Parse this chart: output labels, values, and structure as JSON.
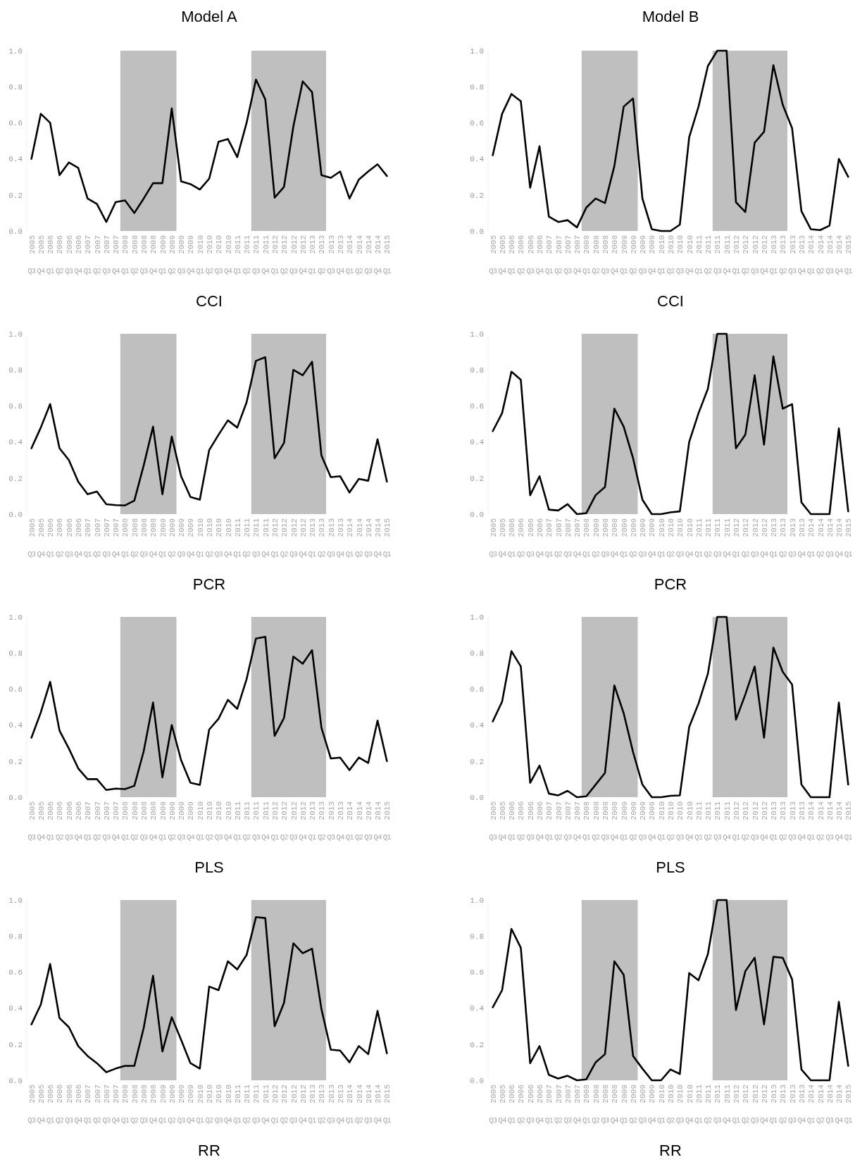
{
  "chart_data": [
    {
      "type": "line",
      "subtitle": "Model A",
      "title": "CCI",
      "categories": [
        "2005 Q3",
        "2005 Q4",
        "2006 Q1",
        "2006 Q2",
        "2006 Q3",
        "2006 Q4",
        "2007 Q1",
        "2007 Q2",
        "2007 Q3",
        "2007 Q4",
        "2008 Q1",
        "2008 Q2",
        "2008 Q3",
        "2008 Q4",
        "2009 Q1",
        "2009 Q2",
        "2009 Q3",
        "2009 Q4",
        "2010 Q1",
        "2010 Q2",
        "2010 Q3",
        "2010 Q4",
        "2011 Q1",
        "2011 Q2",
        "2011 Q3",
        "2011 Q4",
        "2012 Q1",
        "2012 Q2",
        "2012 Q3",
        "2012 Q4",
        "2013 Q1",
        "2013 Q2",
        "2013 Q3",
        "2013 Q4",
        "2014 Q1",
        "2014 Q2",
        "2014 Q3",
        "2014 Q4",
        "2015 Q1"
      ],
      "series": [
        {
          "color": "#000000",
          "values": [
            0.4,
            0.65,
            0.6,
            0.31,
            0.38,
            0.35,
            0.18,
            0.15,
            0.05,
            0.16,
            0.17,
            0.1,
            0.18,
            0.265,
            0.265,
            0.68,
            0.275,
            0.26,
            0.23,
            0.29,
            0.495,
            0.51,
            0.41,
            0.6,
            0.84,
            0.73,
            0.185,
            0.245,
            0.58,
            0.83,
            0.77,
            0.31,
            0.295,
            0.33,
            0.18,
            0.285,
            0.33,
            0.37,
            0.305
          ]
        }
      ],
      "ylim": [
        0,
        1
      ],
      "yticks": [
        {
          "value": 0,
          "label": "0.0"
        },
        {
          "value": 0.2,
          "label": "0.2"
        },
        {
          "value": 0.4,
          "label": "0.4"
        },
        {
          "value": 0.6,
          "label": "0.6"
        },
        {
          "value": 0.8,
          "label": "0.8"
        },
        {
          "value": 1,
          "label": "1.0"
        }
      ],
      "bands": [
        {
          "axis": "x",
          "from": "2008 Q1",
          "to": "2009 Q2",
          "color": "#bfbfbf"
        },
        {
          "axis": "x",
          "from": "2011 Q3",
          "to": "2013 Q2",
          "color": "#bfbfbf"
        }
      ]
    },
    {
      "type": "line",
      "subtitle": "Model B",
      "title": "CCI",
      "categories": [
        "2005 Q3",
        "2005 Q4",
        "2006 Q1",
        "2006 Q2",
        "2006 Q3",
        "2006 Q4",
        "2007 Q1",
        "2007 Q2",
        "2007 Q3",
        "2007 Q4",
        "2008 Q1",
        "2008 Q2",
        "2008 Q3",
        "2008 Q4",
        "2009 Q1",
        "2009 Q2",
        "2009 Q3",
        "2009 Q4",
        "2010 Q1",
        "2010 Q2",
        "2010 Q3",
        "2010 Q4",
        "2011 Q1",
        "2011 Q2",
        "2011 Q3",
        "2011 Q4",
        "2012 Q1",
        "2012 Q2",
        "2012 Q3",
        "2012 Q4",
        "2013 Q1",
        "2013 Q2",
        "2013 Q3",
        "2013 Q4",
        "2014 Q1",
        "2014 Q2",
        "2014 Q3",
        "2014 Q4",
        "2015 Q1"
      ],
      "series": [
        {
          "color": "#000000",
          "values": [
            0.42,
            0.65,
            0.76,
            0.72,
            0.24,
            0.47,
            0.08,
            0.05,
            0.06,
            0.02,
            0.13,
            0.18,
            0.155,
            0.36,
            0.69,
            0.735,
            0.18,
            0.01,
            0,
            0,
            0.035,
            0.52,
            0.69,
            0.915,
            1,
            1,
            0.16,
            0.105,
            0.49,
            0.55,
            0.92,
            0.7,
            0.57,
            0.11,
            0.01,
            0.005,
            0.03,
            0.4,
            0.3
          ]
        }
      ],
      "ylim": [
        0,
        1
      ],
      "yticks": [
        {
          "value": 0,
          "label": "0.0"
        },
        {
          "value": 0.2,
          "label": "0.2"
        },
        {
          "value": 0.4,
          "label": "0.4"
        },
        {
          "value": 0.6,
          "label": "0.6"
        },
        {
          "value": 0.8,
          "label": "0.8"
        },
        {
          "value": 1,
          "label": "1.0"
        }
      ],
      "bands": [
        {
          "axis": "x",
          "from": "2008 Q1",
          "to": "2009 Q2",
          "color": "#bfbfbf"
        },
        {
          "axis": "x",
          "from": "2011 Q3",
          "to": "2013 Q2",
          "color": "#bfbfbf"
        }
      ]
    },
    {
      "type": "line",
      "title": "PCR",
      "categories": [
        "2005 Q3",
        "2005 Q4",
        "2006 Q1",
        "2006 Q2",
        "2006 Q3",
        "2006 Q4",
        "2007 Q1",
        "2007 Q2",
        "2007 Q3",
        "2007 Q4",
        "2008 Q1",
        "2008 Q2",
        "2008 Q3",
        "2008 Q4",
        "2009 Q1",
        "2009 Q2",
        "2009 Q3",
        "2009 Q4",
        "2010 Q1",
        "2010 Q2",
        "2010 Q3",
        "2010 Q4",
        "2011 Q1",
        "2011 Q2",
        "2011 Q3",
        "2011 Q4",
        "2012 Q1",
        "2012 Q2",
        "2012 Q3",
        "2012 Q4",
        "2013 Q1",
        "2013 Q2",
        "2013 Q3",
        "2013 Q4",
        "2014 Q1",
        "2014 Q2",
        "2014 Q3",
        "2014 Q4",
        "2015 Q1"
      ],
      "series": [
        {
          "color": "#000000",
          "values": [
            0.365,
            0.48,
            0.61,
            0.365,
            0.3,
            0.18,
            0.11,
            0.125,
            0.055,
            0.05,
            0.048,
            0.075,
            0.27,
            0.485,
            0.11,
            0.43,
            0.21,
            0.095,
            0.08,
            0.355,
            0.44,
            0.52,
            0.48,
            0.62,
            0.85,
            0.87,
            0.31,
            0.395,
            0.8,
            0.77,
            0.845,
            0.325,
            0.205,
            0.21,
            0.12,
            0.195,
            0.185,
            0.415,
            0.18
          ]
        }
      ],
      "ylim": [
        0,
        1
      ],
      "yticks": [
        {
          "value": 0,
          "label": "0.0"
        },
        {
          "value": 0.2,
          "label": "0.2"
        },
        {
          "value": 0.4,
          "label": "0.4"
        },
        {
          "value": 0.6,
          "label": "0.6"
        },
        {
          "value": 0.8,
          "label": "0.8"
        },
        {
          "value": 1,
          "label": "1.0"
        }
      ],
      "bands": [
        {
          "axis": "x",
          "from": "2008 Q1",
          "to": "2009 Q2",
          "color": "#bfbfbf"
        },
        {
          "axis": "x",
          "from": "2011 Q3",
          "to": "2013 Q2",
          "color": "#bfbfbf"
        }
      ]
    },
    {
      "type": "line",
      "title": "PCR",
      "categories": [
        "2005 Q3",
        "2005 Q4",
        "2006 Q1",
        "2006 Q2",
        "2006 Q3",
        "2006 Q4",
        "2007 Q1",
        "2007 Q2",
        "2007 Q3",
        "2007 Q4",
        "2008 Q1",
        "2008 Q2",
        "2008 Q3",
        "2008 Q4",
        "2009 Q1",
        "2009 Q2",
        "2009 Q3",
        "2009 Q4",
        "2010 Q1",
        "2010 Q2",
        "2010 Q3",
        "2010 Q4",
        "2011 Q1",
        "2011 Q2",
        "2011 Q3",
        "2011 Q4",
        "2012 Q1",
        "2012 Q2",
        "2012 Q3",
        "2012 Q4",
        "2013 Q1",
        "2013 Q2",
        "2013 Q3",
        "2013 Q4",
        "2014 Q1",
        "2014 Q2",
        "2014 Q3",
        "2014 Q4",
        "2015 Q1"
      ],
      "series": [
        {
          "color": "#000000",
          "values": [
            0.46,
            0.56,
            0.79,
            0.745,
            0.105,
            0.21,
            0.025,
            0.02,
            0.055,
            0,
            0.005,
            0.105,
            0.15,
            0.585,
            0.485,
            0.31,
            0.08,
            0,
            0,
            0.01,
            0.015,
            0.4,
            0.56,
            0.695,
            1,
            1,
            0.365,
            0.44,
            0.77,
            0.385,
            0.875,
            0.585,
            0.61,
            0.065,
            0,
            0,
            0,
            0.475,
            0.015
          ]
        }
      ],
      "ylim": [
        0,
        1
      ],
      "yticks": [
        {
          "value": 0,
          "label": "0.0"
        },
        {
          "value": 0.2,
          "label": "0.2"
        },
        {
          "value": 0.4,
          "label": "0.4"
        },
        {
          "value": 0.6,
          "label": "0.6"
        },
        {
          "value": 0.8,
          "label": "0.8"
        },
        {
          "value": 1,
          "label": "1.0"
        }
      ],
      "bands": [
        {
          "axis": "x",
          "from": "2008 Q1",
          "to": "2009 Q2",
          "color": "#bfbfbf"
        },
        {
          "axis": "x",
          "from": "2011 Q3",
          "to": "2013 Q2",
          "color": "#bfbfbf"
        }
      ]
    },
    {
      "type": "line",
      "title": "PLS",
      "categories": [
        "2005 Q3",
        "2005 Q4",
        "2006 Q1",
        "2006 Q2",
        "2006 Q3",
        "2006 Q4",
        "2007 Q1",
        "2007 Q2",
        "2007 Q3",
        "2007 Q4",
        "2008 Q1",
        "2008 Q2",
        "2008 Q3",
        "2008 Q4",
        "2009 Q1",
        "2009 Q2",
        "2009 Q3",
        "2009 Q4",
        "2010 Q1",
        "2010 Q2",
        "2010 Q3",
        "2010 Q4",
        "2011 Q1",
        "2011 Q2",
        "2011 Q3",
        "2011 Q4",
        "2012 Q1",
        "2012 Q2",
        "2012 Q3",
        "2012 Q4",
        "2013 Q1",
        "2013 Q2",
        "2013 Q3",
        "2013 Q4",
        "2014 Q1",
        "2014 Q2",
        "2014 Q3",
        "2014 Q4",
        "2015 Q1"
      ],
      "series": [
        {
          "color": "#000000",
          "values": [
            0.33,
            0.47,
            0.64,
            0.37,
            0.27,
            0.16,
            0.1,
            0.1,
            0.04,
            0.048,
            0.045,
            0.063,
            0.255,
            0.525,
            0.11,
            0.4,
            0.205,
            0.08,
            0.068,
            0.375,
            0.435,
            0.54,
            0.49,
            0.655,
            0.88,
            0.89,
            0.34,
            0.44,
            0.78,
            0.74,
            0.815,
            0.385,
            0.215,
            0.22,
            0.15,
            0.22,
            0.19,
            0.425,
            0.2
          ]
        }
      ],
      "ylim": [
        0,
        1
      ],
      "yticks": [
        {
          "value": 0,
          "label": "0.0"
        },
        {
          "value": 0.2,
          "label": "0.2"
        },
        {
          "value": 0.4,
          "label": "0.4"
        },
        {
          "value": 0.6,
          "label": "0.6"
        },
        {
          "value": 0.8,
          "label": "0.8"
        },
        {
          "value": 1,
          "label": "1.0"
        }
      ],
      "bands": [
        {
          "axis": "x",
          "from": "2008 Q1",
          "to": "2009 Q2",
          "color": "#bfbfbf"
        },
        {
          "axis": "x",
          "from": "2011 Q3",
          "to": "2013 Q2",
          "color": "#bfbfbf"
        }
      ]
    },
    {
      "type": "line",
      "title": "PLS",
      "categories": [
        "2005 Q3",
        "2005 Q4",
        "2006 Q1",
        "2006 Q2",
        "2006 Q3",
        "2006 Q4",
        "2007 Q1",
        "2007 Q2",
        "2007 Q3",
        "2007 Q4",
        "2008 Q1",
        "2008 Q2",
        "2008 Q3",
        "2008 Q4",
        "2009 Q1",
        "2009 Q2",
        "2009 Q3",
        "2009 Q4",
        "2010 Q1",
        "2010 Q2",
        "2010 Q3",
        "2010 Q4",
        "2011 Q1",
        "2011 Q2",
        "2011 Q3",
        "2011 Q4",
        "2012 Q1",
        "2012 Q2",
        "2012 Q3",
        "2012 Q4",
        "2013 Q1",
        "2013 Q2",
        "2013 Q3",
        "2013 Q4",
        "2014 Q1",
        "2014 Q2",
        "2014 Q3",
        "2014 Q4",
        "2015 Q1"
      ],
      "series": [
        {
          "color": "#000000",
          "values": [
            0.42,
            0.53,
            0.81,
            0.725,
            0.08,
            0.175,
            0.02,
            0.01,
            0.035,
            0,
            0.005,
            0.07,
            0.135,
            0.62,
            0.465,
            0.25,
            0.07,
            0,
            0,
            0.008,
            0.01,
            0.39,
            0.52,
            0.685,
            1,
            1,
            0.43,
            0.57,
            0.725,
            0.33,
            0.83,
            0.695,
            0.625,
            0.07,
            0,
            0,
            0,
            0.525,
            0.07
          ]
        }
      ],
      "ylim": [
        0,
        1
      ],
      "yticks": [
        {
          "value": 0,
          "label": "0.0"
        },
        {
          "value": 0.2,
          "label": "0.2"
        },
        {
          "value": 0.4,
          "label": "0.4"
        },
        {
          "value": 0.6,
          "label": "0.6"
        },
        {
          "value": 0.8,
          "label": "0.8"
        },
        {
          "value": 1,
          "label": "1.0"
        }
      ],
      "bands": [
        {
          "axis": "x",
          "from": "2008 Q1",
          "to": "2009 Q2",
          "color": "#bfbfbf"
        },
        {
          "axis": "x",
          "from": "2011 Q3",
          "to": "2013 Q2",
          "color": "#bfbfbf"
        }
      ]
    },
    {
      "type": "line",
      "title": "RR",
      "categories": [
        "2005 Q3",
        "2005 Q4",
        "2006 Q1",
        "2006 Q2",
        "2006 Q3",
        "2006 Q4",
        "2007 Q1",
        "2007 Q2",
        "2007 Q3",
        "2007 Q4",
        "2008 Q1",
        "2008 Q2",
        "2008 Q3",
        "2008 Q4",
        "2009 Q1",
        "2009 Q2",
        "2009 Q3",
        "2009 Q4",
        "2010 Q1",
        "2010 Q2",
        "2010 Q3",
        "2010 Q4",
        "2011 Q1",
        "2011 Q2",
        "2011 Q3",
        "2011 Q4",
        "2012 Q1",
        "2012 Q2",
        "2012 Q3",
        "2012 Q4",
        "2013 Q1",
        "2013 Q2",
        "2013 Q3",
        "2013 Q4",
        "2014 Q1",
        "2014 Q2",
        "2014 Q3",
        "2014 Q4",
        "2015 Q1"
      ],
      "series": [
        {
          "color": "#000000",
          "values": [
            0.31,
            0.42,
            0.645,
            0.345,
            0.295,
            0.19,
            0.135,
            0.095,
            0.045,
            0.065,
            0.08,
            0.08,
            0.29,
            0.58,
            0.16,
            0.35,
            0.225,
            0.095,
            0.065,
            0.52,
            0.5,
            0.66,
            0.615,
            0.695,
            0.905,
            0.9,
            0.3,
            0.43,
            0.76,
            0.705,
            0.73,
            0.395,
            0.17,
            0.165,
            0.1,
            0.19,
            0.145,
            0.385,
            0.15
          ]
        }
      ],
      "ylim": [
        0,
        1
      ],
      "yticks": [
        {
          "value": 0,
          "label": "0.0"
        },
        {
          "value": 0.2,
          "label": "0.2"
        },
        {
          "value": 0.4,
          "label": "0.4"
        },
        {
          "value": 0.6,
          "label": "0.6"
        },
        {
          "value": 0.8,
          "label": "0.8"
        },
        {
          "value": 1,
          "label": "1.0"
        }
      ],
      "bands": [
        {
          "axis": "x",
          "from": "2008 Q1",
          "to": "2009 Q2",
          "color": "#bfbfbf"
        },
        {
          "axis": "x",
          "from": "2011 Q3",
          "to": "2013 Q2",
          "color": "#bfbfbf"
        }
      ]
    },
    {
      "type": "line",
      "title": "RR",
      "categories": [
        "2005 Q3",
        "2005 Q4",
        "2006 Q1",
        "2006 Q2",
        "2006 Q3",
        "2006 Q4",
        "2007 Q1",
        "2007 Q2",
        "2007 Q3",
        "2007 Q4",
        "2008 Q1",
        "2008 Q2",
        "2008 Q3",
        "2008 Q4",
        "2009 Q1",
        "2009 Q2",
        "2009 Q3",
        "2009 Q4",
        "2010 Q1",
        "2010 Q2",
        "2010 Q3",
        "2010 Q4",
        "2011 Q1",
        "2011 Q2",
        "2011 Q3",
        "2011 Q4",
        "2012 Q1",
        "2012 Q2",
        "2012 Q3",
        "2012 Q4",
        "2013 Q1",
        "2013 Q2",
        "2013 Q3",
        "2013 Q4",
        "2014 Q1",
        "2014 Q2",
        "2014 Q3",
        "2014 Q4",
        "2015 Q1"
      ],
      "series": [
        {
          "color": "#000000",
          "values": [
            0.405,
            0.5,
            0.84,
            0.735,
            0.095,
            0.19,
            0.03,
            0.01,
            0.025,
            0,
            0.005,
            0.1,
            0.145,
            0.66,
            0.585,
            0.135,
            0.065,
            0,
            0,
            0.06,
            0.035,
            0.595,
            0.555,
            0.7,
            1,
            1,
            0.39,
            0.605,
            0.68,
            0.31,
            0.685,
            0.68,
            0.56,
            0.06,
            0,
            0,
            0,
            0.435,
            0.08
          ]
        }
      ],
      "ylim": [
        0,
        1
      ],
      "yticks": [
        {
          "value": 0,
          "label": "0.0"
        },
        {
          "value": 0.2,
          "label": "0.2"
        },
        {
          "value": 0.4,
          "label": "0.4"
        },
        {
          "value": 0.6,
          "label": "0.6"
        },
        {
          "value": 0.8,
          "label": "0.8"
        },
        {
          "value": 1,
          "label": "1.0"
        }
      ],
      "bands": [
        {
          "axis": "x",
          "from": "2008 Q1",
          "to": "2009 Q2",
          "color": "#bfbfbf"
        },
        {
          "axis": "x",
          "from": "2011 Q3",
          "to": "2013 Q2",
          "color": "#bfbfbf"
        }
      ]
    }
  ]
}
